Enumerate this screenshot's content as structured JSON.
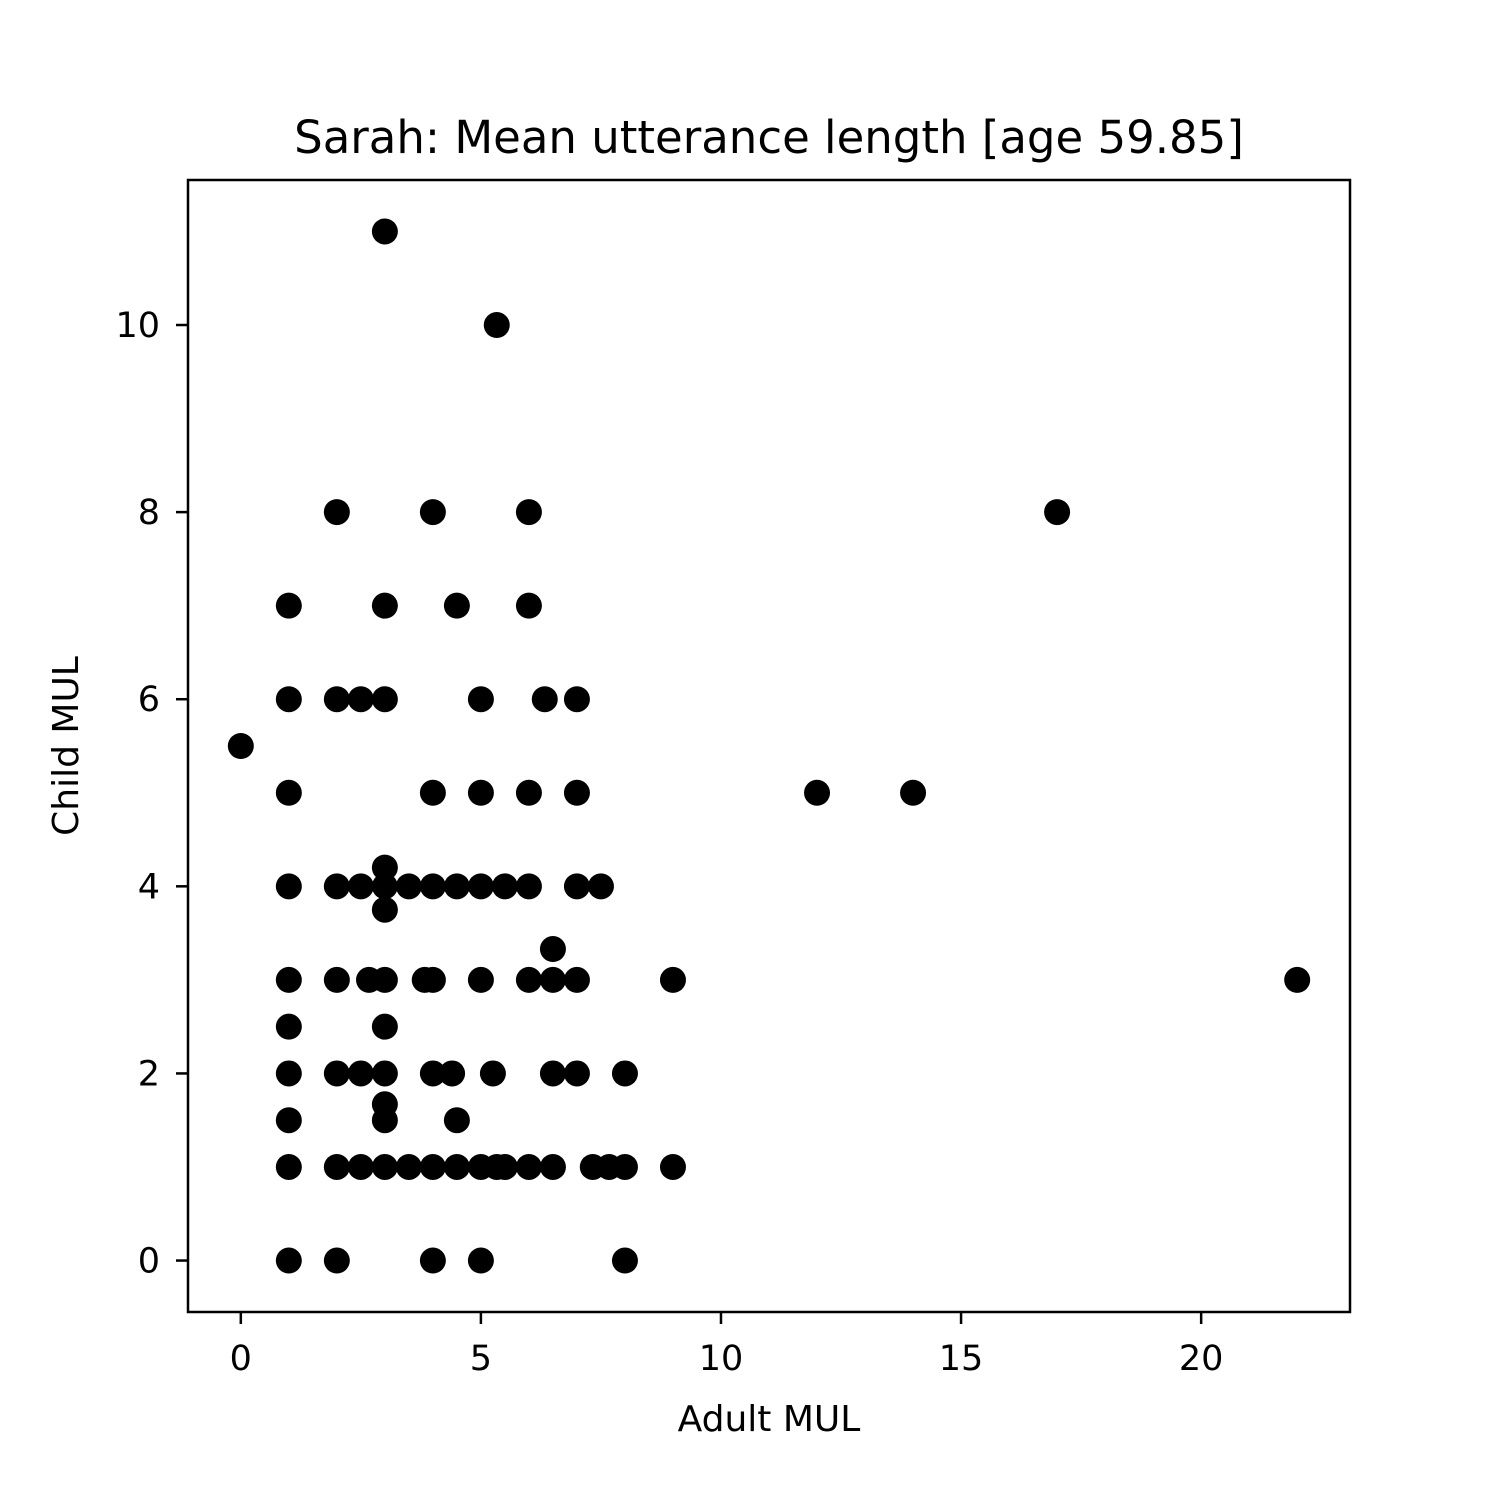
{
  "chart_data": {
    "type": "scatter",
    "title": "Sarah: Mean utterance length [age 59.85]",
    "xlabel": "Adult MUL",
    "ylabel": "Child MUL",
    "xlim": [
      -1.1,
      23.1
    ],
    "ylim": [
      -0.55,
      11.55
    ],
    "xticks": [
      0,
      5,
      10,
      15,
      20
    ],
    "yticks": [
      0,
      2,
      4,
      6,
      8,
      10
    ],
    "xtick_labels": [
      "0",
      "5",
      "10",
      "15",
      "20"
    ],
    "ytick_labels": [
      "0",
      "2",
      "4",
      "6",
      "8",
      "10"
    ],
    "grid": false,
    "marker_color": "#000000",
    "points": [
      {
        "x": 3,
        "y": 11
      },
      {
        "x": 5.33,
        "y": 10
      },
      {
        "x": 2,
        "y": 8
      },
      {
        "x": 4,
        "y": 8
      },
      {
        "x": 6,
        "y": 8
      },
      {
        "x": 17,
        "y": 8
      },
      {
        "x": 1,
        "y": 7
      },
      {
        "x": 3,
        "y": 7
      },
      {
        "x": 4.5,
        "y": 7
      },
      {
        "x": 6,
        "y": 7
      },
      {
        "x": 1,
        "y": 6
      },
      {
        "x": 2,
        "y": 6
      },
      {
        "x": 2.5,
        "y": 6
      },
      {
        "x": 3,
        "y": 6
      },
      {
        "x": 5,
        "y": 6
      },
      {
        "x": 6.33,
        "y": 6
      },
      {
        "x": 7,
        "y": 6
      },
      {
        "x": 0,
        "y": 5.5
      },
      {
        "x": 1,
        "y": 5
      },
      {
        "x": 4,
        "y": 5
      },
      {
        "x": 5,
        "y": 5
      },
      {
        "x": 6,
        "y": 5
      },
      {
        "x": 7,
        "y": 5
      },
      {
        "x": 12,
        "y": 5
      },
      {
        "x": 14,
        "y": 5
      },
      {
        "x": 3,
        "y": 4.2
      },
      {
        "x": 1,
        "y": 4
      },
      {
        "x": 2,
        "y": 4
      },
      {
        "x": 2.5,
        "y": 4
      },
      {
        "x": 3,
        "y": 4
      },
      {
        "x": 3.5,
        "y": 4
      },
      {
        "x": 4,
        "y": 4
      },
      {
        "x": 4.5,
        "y": 4
      },
      {
        "x": 5,
        "y": 4
      },
      {
        "x": 5.5,
        "y": 4
      },
      {
        "x": 6,
        "y": 4
      },
      {
        "x": 7,
        "y": 4
      },
      {
        "x": 7.5,
        "y": 4
      },
      {
        "x": 3,
        "y": 3.75
      },
      {
        "x": 6.5,
        "y": 3.33
      },
      {
        "x": 1,
        "y": 3
      },
      {
        "x": 2,
        "y": 3
      },
      {
        "x": 2.67,
        "y": 3
      },
      {
        "x": 3,
        "y": 3
      },
      {
        "x": 3.83,
        "y": 3
      },
      {
        "x": 4,
        "y": 3
      },
      {
        "x": 5,
        "y": 3
      },
      {
        "x": 6,
        "y": 3
      },
      {
        "x": 6.5,
        "y": 3
      },
      {
        "x": 7,
        "y": 3
      },
      {
        "x": 9,
        "y": 3
      },
      {
        "x": 22,
        "y": 3
      },
      {
        "x": 1,
        "y": 2.5
      },
      {
        "x": 3,
        "y": 2.5
      },
      {
        "x": 1,
        "y": 2
      },
      {
        "x": 2,
        "y": 2
      },
      {
        "x": 2.5,
        "y": 2
      },
      {
        "x": 3,
        "y": 2
      },
      {
        "x": 4,
        "y": 2
      },
      {
        "x": 4.4,
        "y": 2
      },
      {
        "x": 5.25,
        "y": 2
      },
      {
        "x": 6.5,
        "y": 2
      },
      {
        "x": 7,
        "y": 2
      },
      {
        "x": 8,
        "y": 2
      },
      {
        "x": 3,
        "y": 1.67
      },
      {
        "x": 1,
        "y": 1.5
      },
      {
        "x": 3,
        "y": 1.5
      },
      {
        "x": 4.5,
        "y": 1.5
      },
      {
        "x": 1,
        "y": 1
      },
      {
        "x": 2,
        "y": 1
      },
      {
        "x": 2.5,
        "y": 1
      },
      {
        "x": 3,
        "y": 1
      },
      {
        "x": 3.5,
        "y": 1
      },
      {
        "x": 4,
        "y": 1
      },
      {
        "x": 4.5,
        "y": 1
      },
      {
        "x": 5,
        "y": 1
      },
      {
        "x": 5.33,
        "y": 1
      },
      {
        "x": 5.5,
        "y": 1
      },
      {
        "x": 6,
        "y": 1
      },
      {
        "x": 6.5,
        "y": 1
      },
      {
        "x": 7.33,
        "y": 1
      },
      {
        "x": 7.67,
        "y": 1
      },
      {
        "x": 8,
        "y": 1
      },
      {
        "x": 9,
        "y": 1
      },
      {
        "x": 1,
        "y": 0
      },
      {
        "x": 2,
        "y": 0
      },
      {
        "x": 4,
        "y": 0
      },
      {
        "x": 5,
        "y": 0
      },
      {
        "x": 8,
        "y": 0
      }
    ]
  }
}
